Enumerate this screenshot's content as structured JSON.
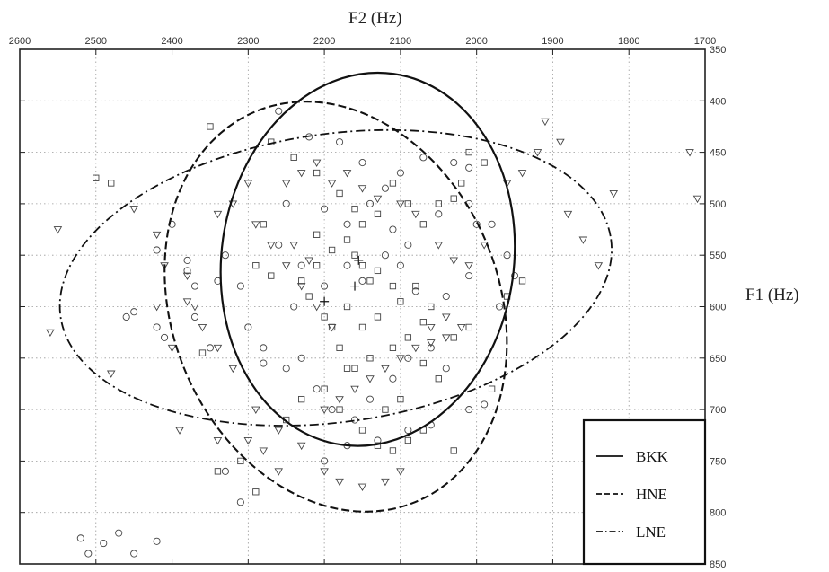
{
  "chart_data": {
    "type": "scatter",
    "xlabel": "F2 (Hz)",
    "ylabel": "F1 (Hz)",
    "xlim": [
      2600,
      1700
    ],
    "ylim": [
      350,
      850
    ],
    "x_reversed": true,
    "y_reversed": true,
    "x_ticks": [
      "2600",
      "2500",
      "2400",
      "2300",
      "2200",
      "2100",
      "2000",
      "1900",
      "1800",
      "1700"
    ],
    "y_ticks": [
      "350",
      "400",
      "450",
      "500",
      "550",
      "600",
      "650",
      "700",
      "750",
      "800",
      "850"
    ],
    "grid": true,
    "legend_position": "bottom-right",
    "series": [
      {
        "name": "BKK",
        "line_style": "solid",
        "marker": "circle",
        "mean": [
          2155,
          555
        ],
        "ellipse": {
          "cx": 2143,
          "cy": 554,
          "rx": 192,
          "ry": 182,
          "angle": 8
        },
        "points": [
          [
            2260,
            410
          ],
          [
            2220,
            435
          ],
          [
            2180,
            440
          ],
          [
            2150,
            460
          ],
          [
            2120,
            485
          ],
          [
            2100,
            470
          ],
          [
            2070,
            455
          ],
          [
            2030,
            460
          ],
          [
            2010,
            465
          ],
          [
            2250,
            500
          ],
          [
            2200,
            505
          ],
          [
            2170,
            520
          ],
          [
            2140,
            500
          ],
          [
            2110,
            525
          ],
          [
            2090,
            540
          ],
          [
            2050,
            510
          ],
          [
            2010,
            500
          ],
          [
            2000,
            520
          ],
          [
            2260,
            540
          ],
          [
            2230,
            560
          ],
          [
            2200,
            580
          ],
          [
            2170,
            560
          ],
          [
            2150,
            575
          ],
          [
            2120,
            550
          ],
          [
            2100,
            560
          ],
          [
            2080,
            585
          ],
          [
            2040,
            590
          ],
          [
            2010,
            570
          ],
          [
            2310,
            580
          ],
          [
            2340,
            575
          ],
          [
            2370,
            580
          ],
          [
            2380,
            555
          ],
          [
            2330,
            550
          ],
          [
            2300,
            620
          ],
          [
            2280,
            640
          ],
          [
            2250,
            660
          ],
          [
            2230,
            650
          ],
          [
            2210,
            680
          ],
          [
            2190,
            700
          ],
          [
            2160,
            710
          ],
          [
            2140,
            690
          ],
          [
            2110,
            670
          ],
          [
            2090,
            650
          ],
          [
            2060,
            640
          ],
          [
            2040,
            660
          ],
          [
            2010,
            700
          ],
          [
            1990,
            695
          ],
          [
            1980,
            520
          ],
          [
            1960,
            550
          ],
          [
            1950,
            570
          ],
          [
            1970,
            600
          ],
          [
            2200,
            750
          ],
          [
            2170,
            735
          ],
          [
            2130,
            730
          ],
          [
            2090,
            720
          ],
          [
            2060,
            715
          ],
          [
            2350,
            640
          ],
          [
            2370,
            610
          ],
          [
            2330,
            760
          ],
          [
            2310,
            790
          ],
          [
            2450,
            605
          ],
          [
            2460,
            610
          ],
          [
            2420,
            620
          ],
          [
            2410,
            630
          ],
          [
            2400,
            520
          ],
          [
            2420,
            545
          ],
          [
            2380,
            565
          ],
          [
            2520,
            825
          ],
          [
            2490,
            830
          ],
          [
            2470,
            820
          ],
          [
            2450,
            840
          ],
          [
            2420,
            828
          ],
          [
            2510,
            840
          ],
          [
            2280,
            655
          ],
          [
            2240,
            600
          ]
        ]
      },
      {
        "name": "HNE",
        "line_style": "dashed",
        "marker": "square",
        "mean": [
          2160,
          580
        ],
        "ellipse": {
          "cx": 2185,
          "cy": 600,
          "rx": 215,
          "ry": 205,
          "angle": -22
        },
        "points": [
          [
            2500,
            475
          ],
          [
            2480,
            480
          ],
          [
            2350,
            425
          ],
          [
            2270,
            440
          ],
          [
            2240,
            455
          ],
          [
            2210,
            470
          ],
          [
            2180,
            490
          ],
          [
            2160,
            505
          ],
          [
            2150,
            520
          ],
          [
            2130,
            510
          ],
          [
            2110,
            480
          ],
          [
            2090,
            500
          ],
          [
            2070,
            520
          ],
          [
            2050,
            500
          ],
          [
            2030,
            495
          ],
          [
            2020,
            480
          ],
          [
            2010,
            450
          ],
          [
            1990,
            460
          ],
          [
            2210,
            530
          ],
          [
            2190,
            545
          ],
          [
            2170,
            535
          ],
          [
            2160,
            550
          ],
          [
            2150,
            560
          ],
          [
            2140,
            575
          ],
          [
            2130,
            565
          ],
          [
            2110,
            580
          ],
          [
            2100,
            595
          ],
          [
            2080,
            580
          ],
          [
            2170,
            600
          ],
          [
            2150,
            620
          ],
          [
            2130,
            610
          ],
          [
            2110,
            640
          ],
          [
            2090,
            630
          ],
          [
            2070,
            615
          ],
          [
            2060,
            600
          ],
          [
            2030,
            630
          ],
          [
            2010,
            620
          ],
          [
            2180,
            640
          ],
          [
            2160,
            660
          ],
          [
            2140,
            650
          ],
          [
            2180,
            700
          ],
          [
            2150,
            720
          ],
          [
            2130,
            735
          ],
          [
            2110,
            740
          ],
          [
            2090,
            730
          ],
          [
            2070,
            720
          ],
          [
            2030,
            740
          ],
          [
            1980,
            680
          ],
          [
            1960,
            590
          ],
          [
            1940,
            575
          ],
          [
            2250,
            710
          ],
          [
            2230,
            690
          ],
          [
            2200,
            680
          ],
          [
            2170,
            660
          ],
          [
            2340,
            760
          ],
          [
            2310,
            750
          ],
          [
            2290,
            780
          ],
          [
            2360,
            645
          ],
          [
            2210,
            560
          ],
          [
            2230,
            575
          ],
          [
            2220,
            590
          ],
          [
            2190,
            620
          ],
          [
            2200,
            610
          ],
          [
            2270,
            570
          ],
          [
            2290,
            560
          ],
          [
            2280,
            520
          ],
          [
            2120,
            700
          ],
          [
            2100,
            690
          ],
          [
            2050,
            670
          ],
          [
            2070,
            655
          ]
        ]
      },
      {
        "name": "LNE",
        "line_style": "dashdot",
        "marker": "triangle",
        "mean": [
          2200,
          595
        ],
        "ellipse": {
          "cx": 2185,
          "cy": 572,
          "rx": 365,
          "ry": 140,
          "angle": -8
        },
        "points": [
          [
            2550,
            525
          ],
          [
            2560,
            625
          ],
          [
            2480,
            665
          ],
          [
            2450,
            505
          ],
          [
            2420,
            530
          ],
          [
            2410,
            560
          ],
          [
            2380,
            570
          ],
          [
            2370,
            600
          ],
          [
            2360,
            620
          ],
          [
            2340,
            640
          ],
          [
            2320,
            660
          ],
          [
            2290,
            700
          ],
          [
            2260,
            720
          ],
          [
            2230,
            735
          ],
          [
            2200,
            760
          ],
          [
            2180,
            770
          ],
          [
            2150,
            775
          ],
          [
            2120,
            770
          ],
          [
            2100,
            760
          ],
          [
            2300,
            730
          ],
          [
            2340,
            730
          ],
          [
            2390,
            720
          ],
          [
            2280,
            740
          ],
          [
            2260,
            760
          ],
          [
            2250,
            480
          ],
          [
            2230,
            470
          ],
          [
            2210,
            460
          ],
          [
            2190,
            480
          ],
          [
            2170,
            470
          ],
          [
            2150,
            485
          ],
          [
            2130,
            495
          ],
          [
            2100,
            500
          ],
          [
            2080,
            510
          ],
          [
            2050,
            540
          ],
          [
            2030,
            555
          ],
          [
            2010,
            560
          ],
          [
            1990,
            540
          ],
          [
            1960,
            480
          ],
          [
            1940,
            470
          ],
          [
            1920,
            450
          ],
          [
            1910,
            420
          ],
          [
            1890,
            440
          ],
          [
            1880,
            510
          ],
          [
            1860,
            535
          ],
          [
            1840,
            560
          ],
          [
            1820,
            490
          ],
          [
            1720,
            450
          ],
          [
            1710,
            495
          ],
          [
            2020,
            620
          ],
          [
            2040,
            630
          ],
          [
            2060,
            635
          ],
          [
            2080,
            640
          ],
          [
            2100,
            650
          ],
          [
            2120,
            660
          ],
          [
            2140,
            670
          ],
          [
            2160,
            680
          ],
          [
            2180,
            690
          ],
          [
            2200,
            700
          ],
          [
            2290,
            520
          ],
          [
            2270,
            540
          ],
          [
            2250,
            560
          ],
          [
            2230,
            580
          ],
          [
            2210,
            600
          ],
          [
            2190,
            620
          ],
          [
            2300,
            480
          ],
          [
            2320,
            500
          ],
          [
            2340,
            510
          ],
          [
            2380,
            595
          ],
          [
            2420,
            600
          ],
          [
            2400,
            640
          ],
          [
            2240,
            540
          ],
          [
            2220,
            555
          ],
          [
            2060,
            620
          ],
          [
            2040,
            610
          ]
        ]
      }
    ]
  }
}
